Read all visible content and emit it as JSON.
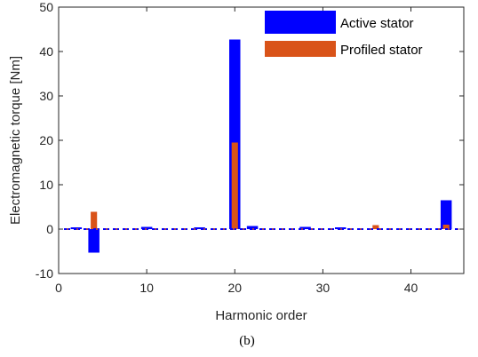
{
  "chart_data": {
    "type": "bar",
    "caption": "(b)",
    "xlabel": "Harmonic order",
    "ylabel": "Electromagnetic torque [Nm]",
    "xlim": [
      0,
      46
    ],
    "ylim": [
      -10,
      50
    ],
    "xticks": [
      0,
      10,
      20,
      30,
      40
    ],
    "yticks": [
      -10,
      0,
      10,
      20,
      30,
      40,
      50
    ],
    "grid": false,
    "legend_position": "top-right",
    "series": [
      {
        "name": "Active stator",
        "color": "#0000ff",
        "x": [
          2,
          4,
          10,
          16,
          20,
          22,
          28,
          32,
          44
        ],
        "values": [
          0.4,
          -5.3,
          0.5,
          0.4,
          42.7,
          0.7,
          0.5,
          0.4,
          6.5
        ]
      },
      {
        "name": "Profiled stator",
        "color": "#d95319",
        "x": [
          4,
          20,
          36,
          44
        ],
        "values": [
          3.9,
          19.5,
          0.9,
          1.0
        ]
      }
    ]
  }
}
